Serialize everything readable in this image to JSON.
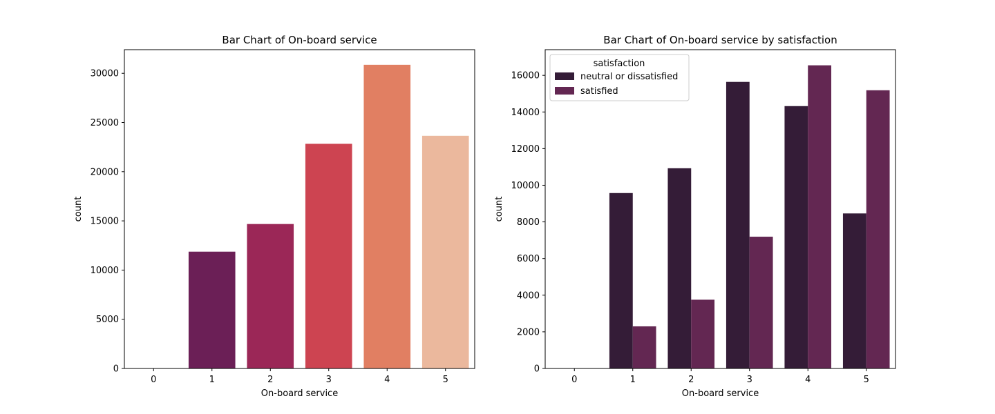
{
  "chart_data": [
    {
      "type": "bar",
      "title": "Bar Chart of On-board service",
      "xlabel": "On-board service",
      "ylabel": "count",
      "categories": [
        "0",
        "1",
        "2",
        "3",
        "4",
        "5"
      ],
      "values": [
        3,
        11872,
        14681,
        22833,
        30867,
        23647
      ],
      "bar_colors": [
        "#35193e",
        "#6b1f56",
        "#9b2757",
        "#cd4451",
        "#e17f62",
        "#ebb89d"
      ],
      "ylim": [
        0,
        32400
      ],
      "yticks": [
        0,
        5000,
        10000,
        15000,
        20000,
        25000,
        30000
      ],
      "grid": false,
      "legend": false
    },
    {
      "type": "bar",
      "title": "Bar Chart of On-board service by satisfaction",
      "xlabel": "On-board service",
      "ylabel": "count",
      "categories": [
        "0",
        "1",
        "2",
        "3",
        "4",
        "5"
      ],
      "series": [
        {
          "name": "neutral or dissatisfied",
          "color": "#341c37",
          "values": [
            3,
            9574,
            10928,
            15641,
            14320,
            8462
          ]
        },
        {
          "name": "satisfied",
          "color": "#632752",
          "values": [
            0,
            2298,
            3753,
            7192,
            16547,
            15185
          ]
        }
      ],
      "legend_title": "satisfaction",
      "legend_position": "upper-left",
      "ylim": [
        0,
        17400
      ],
      "yticks": [
        0,
        2000,
        4000,
        6000,
        8000,
        10000,
        12000,
        14000,
        16000
      ],
      "grid": false
    }
  ]
}
